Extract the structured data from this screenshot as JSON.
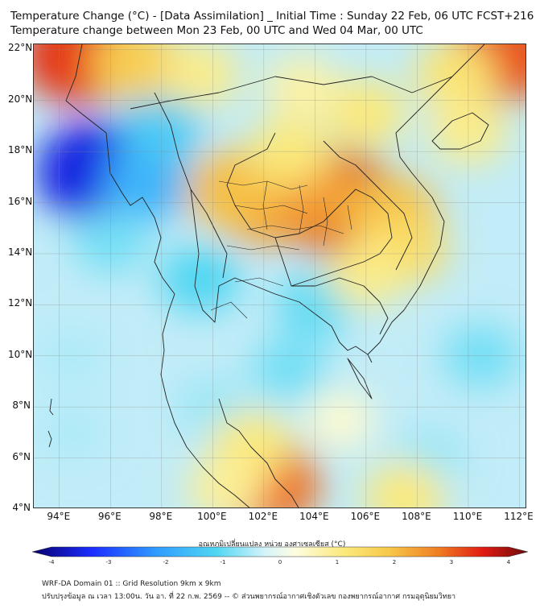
{
  "title_line1": "Temperature Change (°C) - [Data Assimilation] _ Initial Time : Sunday 22 Feb, 06 UTC FCST+216",
  "title_line2": "Temperature change between Mon 23 Feb, 00 UTC and Wed 04 Mar, 00 UTC",
  "map": {
    "lat_ticks": [
      "22°N",
      "20°N",
      "18°N",
      "16°N",
      "14°N",
      "12°N",
      "10°N",
      "8°N",
      "6°N",
      "4°N"
    ],
    "lon_ticks": [
      "94°E",
      "96°E",
      "98°E",
      "100°E",
      "102°E",
      "104°E",
      "106°E",
      "108°E",
      "110°E",
      "112°E"
    ],
    "lat_range": [
      4,
      22.2
    ],
    "lon_range": [
      93,
      112.3
    ],
    "grid": true,
    "anomalies": [
      {
        "lon": 95.5,
        "lat": 17.2,
        "value": -3.2
      },
      {
        "lon": 97.5,
        "lat": 16.8,
        "value": -1.6
      },
      {
        "lon": 96.0,
        "lat": 14.5,
        "value": -0.8
      },
      {
        "lon": 98.0,
        "lat": 19.0,
        "value": -1.2
      },
      {
        "lon": 99.5,
        "lat": 13.0,
        "value": -1.0
      },
      {
        "lon": 104.0,
        "lat": 12.0,
        "value": -0.9
      },
      {
        "lon": 103.0,
        "lat": 9.5,
        "value": -0.8
      },
      {
        "lon": 100.0,
        "lat": 8.0,
        "value": -0.6
      },
      {
        "lon": 110.5,
        "lat": 10.0,
        "value": -0.8
      },
      {
        "lon": 108.5,
        "lat": 6.0,
        "value": -0.6
      },
      {
        "lon": 94.5,
        "lat": 10.0,
        "value": -0.5
      },
      {
        "lon": 94.5,
        "lat": 7.0,
        "value": -0.5
      },
      {
        "lon": 109.5,
        "lat": 19.5,
        "value": -0.4
      },
      {
        "lon": 104.8,
        "lat": 16.0,
        "value": 3.3
      },
      {
        "lon": 103.8,
        "lat": 16.3,
        "value": 2.2
      },
      {
        "lon": 102.0,
        "lat": 16.0,
        "value": 2.2
      },
      {
        "lon": 100.8,
        "lat": 16.5,
        "value": 1.8
      },
      {
        "lon": 107.0,
        "lat": 15.5,
        "value": 1.8
      },
      {
        "lon": 107.5,
        "lat": 14.2,
        "value": 1.3
      },
      {
        "lon": 106.0,
        "lat": 13.2,
        "value": 0.9
      },
      {
        "lon": 103.0,
        "lat": 18.0,
        "value": 1.0
      },
      {
        "lon": 106.0,
        "lat": 19.5,
        "value": 1.0
      },
      {
        "lon": 103.5,
        "lat": 20.5,
        "value": 0.7
      },
      {
        "lon": 94.8,
        "lat": 21.8,
        "value": 3.0
      },
      {
        "lon": 97.0,
        "lat": 21.5,
        "value": 1.6
      },
      {
        "lon": 99.5,
        "lat": 21.0,
        "value": 0.9
      },
      {
        "lon": 111.5,
        "lat": 21.9,
        "value": 2.8
      },
      {
        "lon": 109.5,
        "lat": 21.0,
        "value": 1.1
      },
      {
        "lon": 110.0,
        "lat": 18.8,
        "value": 0.9
      },
      {
        "lon": 102.0,
        "lat": 5.0,
        "value": 2.6
      },
      {
        "lon": 101.5,
        "lat": 6.5,
        "value": 1.0
      },
      {
        "lon": 107.5,
        "lat": 4.5,
        "value": 1.0
      },
      {
        "lon": 100.5,
        "lat": 4.8,
        "value": 0.8
      },
      {
        "lon": 105.0,
        "lat": 7.5,
        "value": 0.4
      }
    ]
  },
  "colorbar": {
    "label": "อุณหภูมิเปลี่ยนแปลง หน่วย องศาเซลเซียส (°C)",
    "min": -4,
    "max": 4,
    "ticks": [
      "-4",
      "-3",
      "-2",
      "-1",
      "0",
      "1",
      "2",
      "3",
      "4"
    ]
  },
  "footer_line1": "WRF-DA Domain 01 :: Grid Resolution 9km x 9km",
  "footer_line2": "ปรับปรุงข้อมูล ณ เวลา 13:00น. วัน อา. ที่ 22 ก.พ. 2569 -- © ส่วนพยากรณ์อากาศเชิงตัวเลข กองพยากรณ์อากาศ กรมอุตุนิยมวิทยา"
}
